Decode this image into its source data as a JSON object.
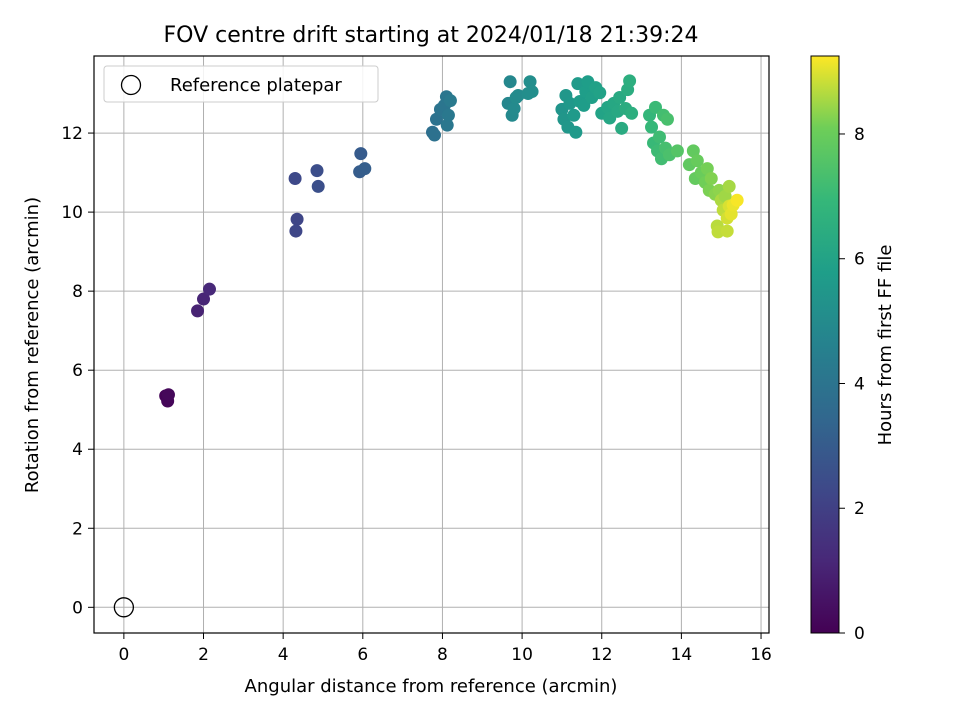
{
  "chart_data": {
    "type": "scatter",
    "title": "FOV centre drift starting at 2024/01/18 21:39:24",
    "xlabel": "Angular distance from reference (arcmin)",
    "ylabel": "Rotation from reference (arcmin)",
    "xlim": [
      -0.75,
      16.2
    ],
    "ylim": [
      -0.65,
      13.95
    ],
    "xticks": [
      0,
      2,
      4,
      6,
      8,
      10,
      12,
      14,
      16
    ],
    "yticks": [
      0,
      2,
      4,
      6,
      8,
      10,
      12
    ],
    "grid": true,
    "legend": {
      "placement": "top-left",
      "entries": [
        "Reference platepar"
      ]
    },
    "reference_point": {
      "name": "Reference platepar",
      "x": 0,
      "y": 0
    },
    "colorbar": {
      "label": "Hours from first FF file",
      "range": [
        0,
        9.25
      ],
      "ticks": [
        0,
        2,
        4,
        6,
        8
      ],
      "colormap": "viridis"
    },
    "series": [
      {
        "points": [
          {
            "x": 1.05,
            "y": 5.35,
            "h": 0.1
          },
          {
            "x": 1.1,
            "y": 5.22,
            "h": 0.15
          },
          {
            "x": 1.12,
            "y": 5.38,
            "h": 0.2
          },
          {
            "x": 1.85,
            "y": 7.5,
            "h": 1.0
          },
          {
            "x": 2.0,
            "y": 7.8,
            "h": 1.1
          },
          {
            "x": 2.15,
            "y": 8.05,
            "h": 1.2
          },
          {
            "x": 4.3,
            "y": 10.85,
            "h": 2.3
          },
          {
            "x": 4.35,
            "y": 9.82,
            "h": 2.2
          },
          {
            "x": 4.32,
            "y": 9.52,
            "h": 2.25
          },
          {
            "x": 4.85,
            "y": 11.05,
            "h": 2.5
          },
          {
            "x": 4.88,
            "y": 10.65,
            "h": 2.55
          },
          {
            "x": 5.95,
            "y": 11.48,
            "h": 3.0
          },
          {
            "x": 5.92,
            "y": 11.02,
            "h": 3.05
          },
          {
            "x": 6.05,
            "y": 11.1,
            "h": 3.1
          },
          {
            "x": 7.75,
            "y": 12.02,
            "h": 3.8
          },
          {
            "x": 7.8,
            "y": 11.95,
            "h": 3.85
          },
          {
            "x": 7.85,
            "y": 12.35,
            "h": 3.9
          },
          {
            "x": 7.95,
            "y": 12.6,
            "h": 4.0
          },
          {
            "x": 8.05,
            "y": 12.7,
            "h": 4.05
          },
          {
            "x": 8.1,
            "y": 12.92,
            "h": 4.1
          },
          {
            "x": 8.12,
            "y": 12.2,
            "h": 4.15
          },
          {
            "x": 8.15,
            "y": 12.45,
            "h": 4.2
          },
          {
            "x": 8.2,
            "y": 12.82,
            "h": 4.25
          },
          {
            "x": 9.65,
            "y": 12.75,
            "h": 4.8
          },
          {
            "x": 9.7,
            "y": 13.3,
            "h": 4.85
          },
          {
            "x": 9.75,
            "y": 12.45,
            "h": 4.9
          },
          {
            "x": 9.8,
            "y": 12.62,
            "h": 4.95
          },
          {
            "x": 9.85,
            "y": 12.9,
            "h": 5.0
          },
          {
            "x": 9.9,
            "y": 12.95,
            "h": 5.0
          },
          {
            "x": 10.2,
            "y": 13.3,
            "h": 5.1
          },
          {
            "x": 10.25,
            "y": 13.05,
            "h": 5.15
          },
          {
            "x": 10.15,
            "y": 13.0,
            "h": 5.1
          },
          {
            "x": 11.0,
            "y": 12.6,
            "h": 5.4
          },
          {
            "x": 11.05,
            "y": 12.35,
            "h": 5.45
          },
          {
            "x": 11.1,
            "y": 12.95,
            "h": 5.5
          },
          {
            "x": 11.15,
            "y": 12.15,
            "h": 5.5
          },
          {
            "x": 11.2,
            "y": 12.75,
            "h": 5.55
          },
          {
            "x": 11.3,
            "y": 12.45,
            "h": 5.6
          },
          {
            "x": 11.35,
            "y": 12.02,
            "h": 5.6
          },
          {
            "x": 11.4,
            "y": 13.25,
            "h": 5.65
          },
          {
            "x": 11.45,
            "y": 12.8,
            "h": 5.7
          },
          {
            "x": 11.55,
            "y": 12.7,
            "h": 5.75
          },
          {
            "x": 11.6,
            "y": 13.05,
            "h": 5.8
          },
          {
            "x": 11.65,
            "y": 13.3,
            "h": 5.8
          },
          {
            "x": 11.75,
            "y": 12.9,
            "h": 5.85
          },
          {
            "x": 11.85,
            "y": 13.15,
            "h": 5.9
          },
          {
            "x": 11.95,
            "y": 13.02,
            "h": 5.95
          },
          {
            "x": 12.0,
            "y": 12.5,
            "h": 6.0
          },
          {
            "x": 12.15,
            "y": 12.65,
            "h": 6.1
          },
          {
            "x": 12.2,
            "y": 12.38,
            "h": 6.15
          },
          {
            "x": 12.3,
            "y": 12.75,
            "h": 6.2
          },
          {
            "x": 12.4,
            "y": 12.55,
            "h": 6.25
          },
          {
            "x": 12.45,
            "y": 12.9,
            "h": 6.3
          },
          {
            "x": 12.5,
            "y": 12.12,
            "h": 6.35
          },
          {
            "x": 12.6,
            "y": 12.62,
            "h": 6.4
          },
          {
            "x": 12.65,
            "y": 13.1,
            "h": 6.45
          },
          {
            "x": 12.7,
            "y": 13.32,
            "h": 6.5
          },
          {
            "x": 12.75,
            "y": 12.5,
            "h": 6.5
          },
          {
            "x": 13.2,
            "y": 12.45,
            "h": 6.9
          },
          {
            "x": 13.25,
            "y": 12.15,
            "h": 6.95
          },
          {
            "x": 13.3,
            "y": 11.75,
            "h": 7.0
          },
          {
            "x": 13.35,
            "y": 12.65,
            "h": 7.05
          },
          {
            "x": 13.4,
            "y": 11.55,
            "h": 7.1
          },
          {
            "x": 13.45,
            "y": 11.9,
            "h": 7.15
          },
          {
            "x": 13.5,
            "y": 11.35,
            "h": 7.2
          },
          {
            "x": 13.55,
            "y": 12.45,
            "h": 7.25
          },
          {
            "x": 13.6,
            "y": 11.62,
            "h": 7.3
          },
          {
            "x": 13.65,
            "y": 12.35,
            "h": 7.35
          },
          {
            "x": 13.7,
            "y": 11.45,
            "h": 7.4
          },
          {
            "x": 13.9,
            "y": 11.55,
            "h": 7.6
          },
          {
            "x": 14.2,
            "y": 11.2,
            "h": 7.8
          },
          {
            "x": 14.3,
            "y": 11.55,
            "h": 7.85
          },
          {
            "x": 14.35,
            "y": 10.85,
            "h": 7.9
          },
          {
            "x": 14.4,
            "y": 11.3,
            "h": 7.95
          },
          {
            "x": 14.5,
            "y": 11.0,
            "h": 8.0
          },
          {
            "x": 14.6,
            "y": 10.75,
            "h": 8.1
          },
          {
            "x": 14.65,
            "y": 11.1,
            "h": 8.15
          },
          {
            "x": 14.7,
            "y": 10.55,
            "h": 8.2
          },
          {
            "x": 14.75,
            "y": 10.85,
            "h": 8.25
          },
          {
            "x": 14.85,
            "y": 10.45,
            "h": 8.3
          },
          {
            "x": 14.95,
            "y": 10.55,
            "h": 8.35
          },
          {
            "x": 14.9,
            "y": 9.65,
            "h": 8.7
          },
          {
            "x": 14.92,
            "y": 9.5,
            "h": 8.75
          },
          {
            "x": 15.0,
            "y": 10.3,
            "h": 8.6
          },
          {
            "x": 15.05,
            "y": 10.05,
            "h": 8.75
          },
          {
            "x": 15.1,
            "y": 10.4,
            "h": 8.5
          },
          {
            "x": 15.15,
            "y": 9.85,
            "h": 8.9
          },
          {
            "x": 15.2,
            "y": 10.15,
            "h": 8.95
          },
          {
            "x": 15.2,
            "y": 10.65,
            "h": 8.55
          },
          {
            "x": 15.15,
            "y": 9.52,
            "h": 8.8
          },
          {
            "x": 15.25,
            "y": 9.95,
            "h": 9.05
          },
          {
            "x": 15.3,
            "y": 10.18,
            "h": 9.1
          },
          {
            "x": 15.4,
            "y": 10.3,
            "h": 9.2
          }
        ]
      }
    ]
  }
}
